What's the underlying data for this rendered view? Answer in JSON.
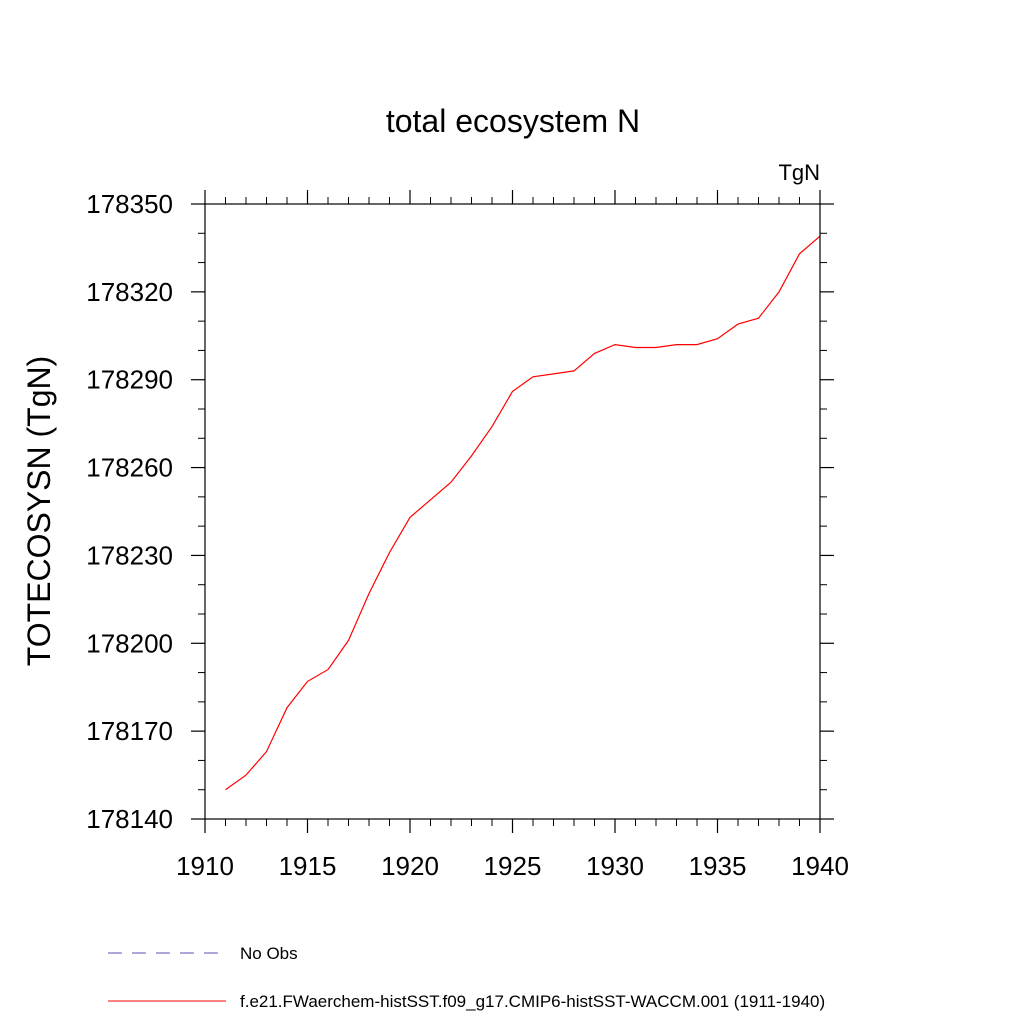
{
  "chart_data": {
    "type": "line",
    "title": "total ecosystem N",
    "units": "TgN",
    "ylabel": "TOTECOSYSN  (TgN)",
    "xlabel": "",
    "xlim": [
      1910,
      1940
    ],
    "ylim": [
      178140,
      178350
    ],
    "x_ticks": [
      1910,
      1915,
      1920,
      1925,
      1930,
      1935,
      1940
    ],
    "y_ticks": [
      178140,
      178170,
      178200,
      178230,
      178260,
      178290,
      178320,
      178350
    ],
    "x_minor_step": 1,
    "y_minor_step": 10,
    "grid": false,
    "legend_placement": "bottom",
    "series": [
      {
        "name": "f.e21.FWaerchem-histSST.f09_g17.CMIP6-histSST-WACCM.001 (1911-1940)",
        "color": "#ff0000",
        "style": "solid",
        "x": [
          1911,
          1912,
          1913,
          1914,
          1915,
          1916,
          1917,
          1918,
          1919,
          1920,
          1921,
          1922,
          1923,
          1924,
          1925,
          1926,
          1927,
          1928,
          1929,
          1930,
          1931,
          1932,
          1933,
          1934,
          1935,
          1936,
          1937,
          1938,
          1939,
          1940
        ],
        "values": [
          178150,
          178155,
          178163,
          178178,
          178187,
          178191,
          178201,
          178217,
          178231,
          178243,
          178249,
          178255,
          178264,
          178274,
          178286,
          178291,
          178292,
          178293,
          178299,
          178302,
          178301,
          178301,
          178302,
          178302,
          178304,
          178309,
          178311,
          178320,
          178333,
          178339
        ]
      }
    ],
    "legend": [
      {
        "label": "No Obs",
        "color": "#5a4fb0",
        "style": "dashed"
      },
      {
        "label": "f.e21.FWaerchem-histSST.f09_g17.CMIP6-histSST-WACCM.001 (1911-1940)",
        "color": "#ff0000",
        "style": "solid"
      }
    ]
  }
}
